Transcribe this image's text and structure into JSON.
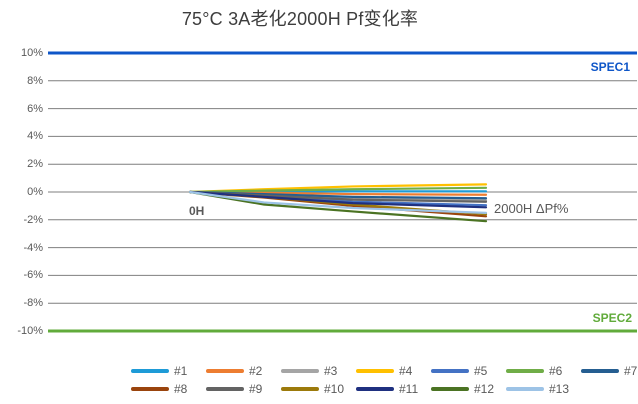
{
  "title": "75°C 3A老化2000H Pf变化率",
  "annotations": {
    "start_label": "0H",
    "end_label": "2000H ΔPf%"
  },
  "spec1": {
    "label": "SPEC1",
    "value": 10,
    "color": "#0E56C8"
  },
  "spec2": {
    "label": "SPEC2",
    "value": -10,
    "color": "#61AB3B"
  },
  "grid_color": "#7F7F7F",
  "chart_data": {
    "type": "line",
    "title": "75°C 3A老化2000H Pf变化率",
    "x": [
      0,
      500,
      1100,
      2000
    ],
    "x_unit": "H",
    "ylabel": "",
    "y_unit": "%",
    "ylim": [
      -10,
      10
    ],
    "y_ticks": [
      "10%",
      "8%",
      "6%",
      "4%",
      "2%",
      "0%",
      "-2%",
      "-4%",
      "-6%",
      "-8%",
      "-10%"
    ],
    "grid": true,
    "legend_position": "bottom",
    "spec_lines": [
      {
        "label": "SPEC1",
        "value": 10,
        "color": "#0E56C8"
      },
      {
        "label": "SPEC2",
        "value": -10,
        "color": "#61AB3B"
      }
    ],
    "series": [
      {
        "name": "#1",
        "color": "#1E9BD7",
        "values": [
          0,
          0.0,
          0.05,
          0.05
        ]
      },
      {
        "name": "#2",
        "color": "#ED7D31",
        "values": [
          0,
          -0.05,
          -0.15,
          -0.2
        ]
      },
      {
        "name": "#3",
        "color": "#A5A5A5",
        "values": [
          0,
          -0.2,
          -0.5,
          -0.6
        ]
      },
      {
        "name": "#4",
        "color": "#FFC000",
        "values": [
          0,
          0.2,
          0.4,
          0.55
        ]
      },
      {
        "name": "#5",
        "color": "#4472C4",
        "values": [
          0,
          -0.3,
          -0.7,
          -0.95
        ]
      },
      {
        "name": "#6",
        "color": "#70AD47",
        "values": [
          0,
          0.1,
          0.2,
          0.3
        ]
      },
      {
        "name": "#7",
        "color": "#255E91",
        "values": [
          0,
          -0.15,
          -0.35,
          -0.45
        ]
      },
      {
        "name": "#8",
        "color": "#9A440D",
        "values": [
          0,
          -0.4,
          -1.0,
          -1.75
        ]
      },
      {
        "name": "#9",
        "color": "#636363",
        "values": [
          0,
          -0.25,
          -0.55,
          -0.7
        ]
      },
      {
        "name": "#10",
        "color": "#9C7A0B",
        "values": [
          0,
          -0.35,
          -0.9,
          -1.6
        ]
      },
      {
        "name": "#11",
        "color": "#1F3080",
        "values": [
          0,
          -0.35,
          -0.8,
          -1.1
        ]
      },
      {
        "name": "#12",
        "color": "#4B7323",
        "values": [
          0,
          -0.9,
          -1.4,
          -2.1
        ]
      },
      {
        "name": "#13",
        "color": "#9DC3E6",
        "values": [
          0,
          -0.75,
          -1.15,
          -1.5
        ]
      }
    ]
  }
}
